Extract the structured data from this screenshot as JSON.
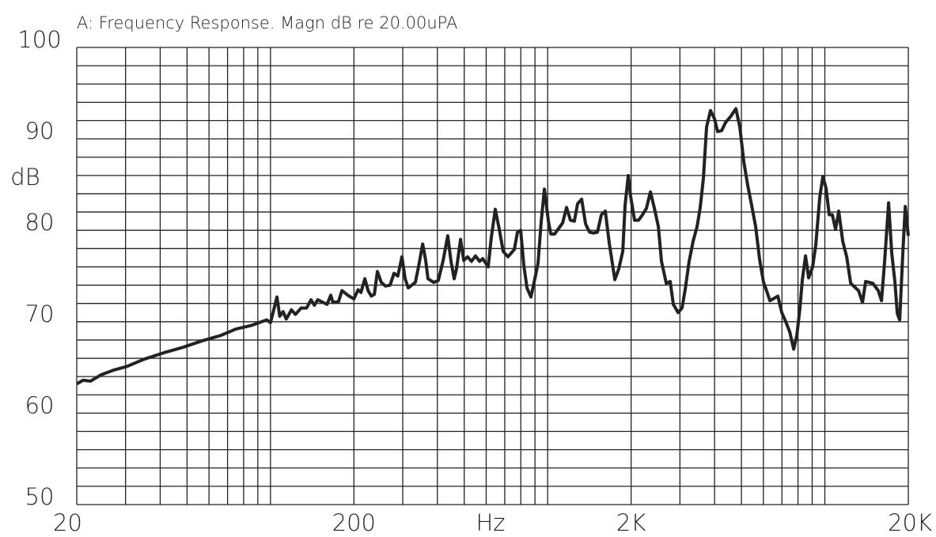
{
  "chart_data": {
    "type": "line",
    "title": "A: Frequency Response. Magn dB re 20.00uPA",
    "xlabel": "Hz",
    "ylabel": "dB",
    "xscale": "log",
    "grid": true,
    "color": "#222222",
    "xlim": [
      20,
      20000
    ],
    "ylim": [
      50,
      100
    ],
    "xticks": [
      20,
      200,
      {
        "value": 2000,
        "label": "2K"
      },
      {
        "value": 20000,
        "label": "20K"
      }
    ],
    "yticks": [
      50,
      60,
      70,
      80,
      90,
      100
    ],
    "xminorticks": [
      30,
      40,
      50,
      60,
      70,
      80,
      90,
      100,
      300,
      400,
      500,
      600,
      700,
      800,
      900,
      1000,
      3000,
      4000,
      5000,
      6000,
      7000,
      8000,
      9000,
      10000
    ],
    "yminorticks": [
      52,
      54,
      56,
      58,
      62,
      64,
      66,
      68,
      72,
      74,
      76,
      78,
      82,
      84,
      86,
      88,
      92,
      94,
      96,
      98
    ],
    "x": [
      20,
      21.1,
      22.4,
      24.5,
      27.1,
      30.3,
      35.0,
      41.2,
      48.3,
      56.5,
      66.2,
      75.0,
      85.5,
      96.9,
      100,
      105.5,
      108,
      111,
      114,
      119,
      123,
      129,
      135,
      140,
      144,
      148,
      160,
      165,
      168,
      176,
      181,
      192,
      200,
      207,
      212,
      219,
      225,
      231,
      237,
      243,
      251,
      260,
      270,
      279,
      288,
      298,
      306,
      314,
      333,
      342,
      354,
      363,
      370,
      388,
      403,
      419,
      436,
      448,
      460,
      469,
      485,
      498,
      514,
      531,
      549,
      568,
      583,
      610,
      626,
      647,
      669,
      691,
      719,
      758,
      778,
      799,
      820,
      842,
      870,
      899,
      923,
      948,
      973,
      1006,
      1026,
      1060,
      1132,
      1170,
      1208,
      1248,
      1282,
      1326,
      1370,
      1416,
      1462,
      1512,
      1562,
      1614,
      1668,
      1747,
      1806,
      1866,
      1902,
      1953,
      1992,
      2058,
      2128,
      2198,
      2271,
      2348,
      2427,
      2508,
      2574,
      2678,
      2767,
      2840,
      2955,
      3053,
      3133,
      3238,
      3347,
      3459,
      3551,
      3646,
      3743,
      3868,
      3998,
      4104,
      4242,
      4384,
      4560,
      4775,
      4934,
      5100,
      5270,
      5446,
      5628,
      5816,
      6010,
      6130,
      6336,
      6766,
      6992,
      7226,
      7468,
      7718,
      7922,
      8132,
      8294,
      8515,
      8741,
      9033,
      9274,
      9584,
      9838,
      10100,
      10370,
      10640,
      10930,
      11220,
      11600,
      11990,
      12390,
      13230,
      13670,
      14030,
      14890,
      15590,
      16010,
      16430,
      16980,
      17430,
      17900,
      18250,
      18620,
      19110,
      19500,
      20000
    ],
    "values": [
      63.2,
      63.6,
      63.5,
      64.2,
      64.7,
      65.1,
      65.9,
      66.6,
      67.2,
      67.9,
      68.5,
      69.2,
      69.6,
      70.2,
      69.9,
      72.7,
      70.6,
      71.1,
      70.3,
      71.3,
      70.8,
      71.5,
      71.5,
      72.4,
      71.8,
      72.4,
      71.9,
      72.9,
      72.1,
      72.2,
      73.4,
      72.8,
      72.5,
      73.5,
      73.2,
      74.7,
      73.4,
      72.8,
      73.0,
      75.5,
      74.3,
      73.9,
      74.0,
      75.3,
      75.0,
      77.1,
      74.7,
      73.7,
      74.3,
      76.0,
      78.5,
      76.7,
      74.7,
      74.3,
      74.5,
      76.6,
      79.4,
      76.6,
      74.7,
      75.8,
      79.0,
      76.7,
      77.1,
      76.6,
      77.2,
      76.6,
      76.9,
      76.0,
      79.2,
      82.3,
      80.1,
      77.7,
      77.1,
      77.9,
      79.8,
      80.0,
      76.2,
      73.7,
      72.7,
      74.7,
      76.4,
      81.0,
      84.5,
      81.0,
      79.6,
      79.6,
      80.8,
      82.5,
      81.1,
      81.0,
      82.9,
      83.4,
      80.7,
      79.8,
      79.7,
      79.8,
      81.7,
      82.1,
      78.6,
      74.6,
      75.8,
      77.7,
      82.7,
      86.0,
      83.7,
      81.1,
      81.1,
      81.7,
      82.4,
      84.2,
      82.4,
      80.4,
      76.6,
      74.2,
      74.4,
      71.9,
      71.0,
      71.5,
      73.5,
      76.6,
      78.8,
      80.4,
      82.5,
      85.7,
      91.3,
      93.1,
      92.2,
      90.8,
      90.9,
      91.8,
      92.4,
      93.3,
      91.3,
      87.5,
      84.9,
      82.7,
      80.4,
      76.8,
      74.3,
      73.6,
      72.3,
      72.8,
      71.0,
      70.0,
      68.9,
      67.0,
      68.5,
      71.5,
      74.6,
      77.2,
      74.8,
      76.0,
      78.4,
      83.6,
      85.9,
      84.6,
      81.7,
      81.7,
      80.1,
      82.1,
      78.8,
      77.1,
      74.2,
      73.4,
      72.1,
      74.4,
      74.2,
      73.4,
      72.3,
      76.6,
      83.0,
      77.5,
      74.3,
      70.9,
      70.2,
      77.5,
      82.6,
      79.4
    ]
  }
}
